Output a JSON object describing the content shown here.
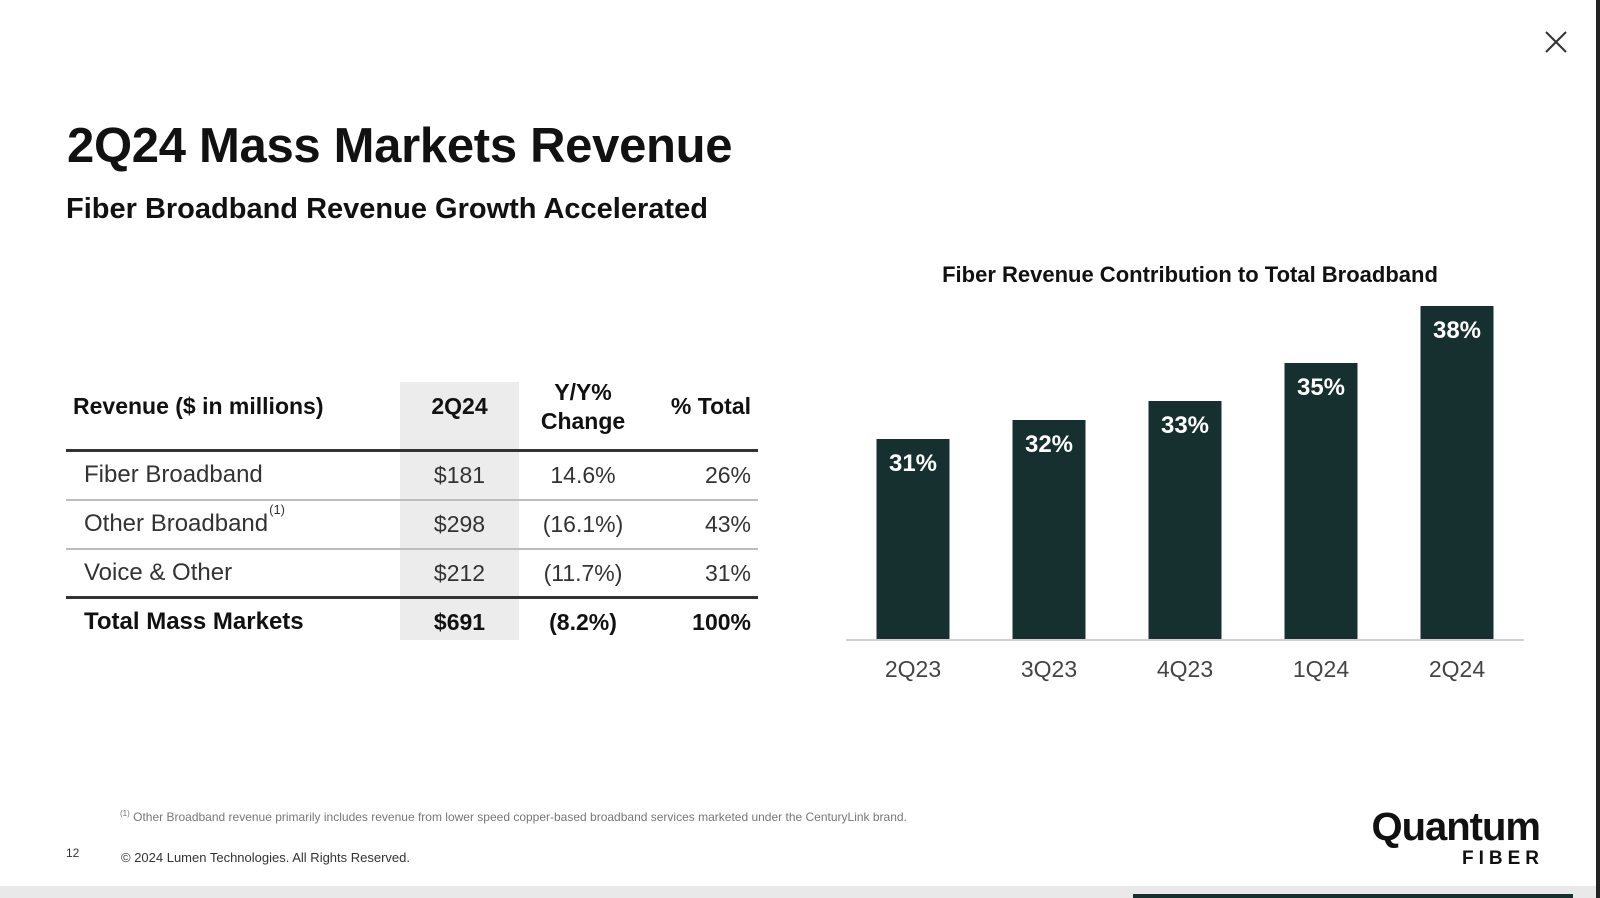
{
  "slide": {
    "title": "2Q24 Mass Markets Revenue",
    "subtitle": "Fiber Broadband Revenue Growth Accelerated"
  },
  "table": {
    "headers": [
      "Revenue ($ in millions)",
      "2Q24",
      "Y/Y% Change",
      "% Total"
    ],
    "header_change_line1": "Y/Y%",
    "header_change_line2": "Change",
    "rows": [
      {
        "label": "Fiber Broadband",
        "footnote": "",
        "value": "$181",
        "change": "14.6%",
        "pct": "26%"
      },
      {
        "label": "Other Broadband",
        "footnote": "(1)",
        "value": "$298",
        "change": "(16.1%)",
        "pct": "43%"
      },
      {
        "label": "Voice & Other",
        "footnote": "",
        "value": "$212",
        "change": "(11.7%)",
        "pct": "31%"
      }
    ],
    "total": {
      "label": "Total Mass Markets",
      "value": "$691",
      "change": "(8.2%)",
      "pct": "100%"
    }
  },
  "chart_data": {
    "type": "bar",
    "title": "Fiber Revenue Contribution to Total Broadband",
    "categories": [
      "2Q23",
      "3Q23",
      "4Q23",
      "1Q24",
      "2Q24"
    ],
    "values": [
      31,
      32,
      33,
      35,
      38
    ],
    "labels": [
      "31%",
      "32%",
      "33%",
      "35%",
      "38%"
    ],
    "xlabel": "",
    "ylabel": "",
    "bar_color": "#15302e",
    "grid": false
  },
  "footer": {
    "footnote_marker": "(1)",
    "footnote": "Other Broadband revenue primarily includes revenue from lower speed copper-based broadband services marketed under the CenturyLink brand.",
    "page_number": "12",
    "copyright": "© 2024 Lumen Technologies. All Rights Reserved."
  },
  "logo": {
    "main": "Quantum",
    "sub": "FIBER"
  },
  "icons": {
    "close": "close-icon"
  }
}
